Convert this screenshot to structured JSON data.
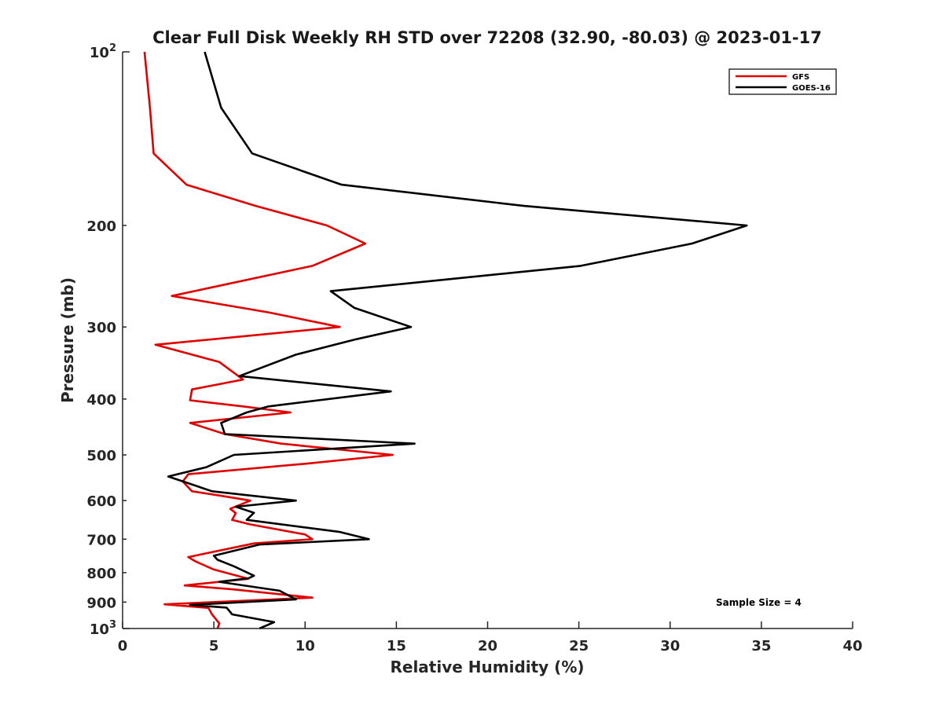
{
  "chart_data": {
    "type": "line",
    "title": "Clear Full Disk Weekly RH STD over 72208 (32.90, -80.03) @ 2023-01-17",
    "xlabel": "Relative Humidity (%)",
    "ylabel": "Pressure (mb)",
    "xlim": [
      0,
      40
    ],
    "ylim": [
      100,
      1000
    ],
    "y_scale": "log",
    "y_reversed": true,
    "x_ticks": [
      "0",
      "5",
      "10",
      "15",
      "20",
      "25",
      "30",
      "35",
      "40"
    ],
    "y_ticks": [
      {
        "value": 100,
        "base": "10",
        "exp": "2"
      },
      {
        "value": 200,
        "label": "200"
      },
      {
        "value": 300,
        "label": "300"
      },
      {
        "value": 400,
        "label": "400"
      },
      {
        "value": 500,
        "label": "500"
      },
      {
        "value": 600,
        "label": "600"
      },
      {
        "value": 700,
        "label": "700"
      },
      {
        "value": 800,
        "label": "800"
      },
      {
        "value": 900,
        "label": "900"
      },
      {
        "value": 1000,
        "base": "10",
        "exp": "3"
      }
    ],
    "legend_position": "top-right",
    "annotation": "Sample Size = 4",
    "series": [
      {
        "name": "GFS",
        "color": "#e00000",
        "points": [
          [
            1.2,
            100
          ],
          [
            1.5,
            125
          ],
          [
            1.7,
            150
          ],
          [
            3.5,
            170
          ],
          [
            7.3,
            185
          ],
          [
            11.2,
            200
          ],
          [
            13.3,
            215
          ],
          [
            10.4,
            235
          ],
          [
            2.7,
            265
          ],
          [
            8.0,
            283
          ],
          [
            11.9,
            300
          ],
          [
            1.8,
            322
          ],
          [
            5.3,
            345
          ],
          [
            6.6,
            370
          ],
          [
            3.8,
            385
          ],
          [
            3.7,
            402
          ],
          [
            6.6,
            412
          ],
          [
            9.2,
            422
          ],
          [
            3.7,
            440
          ],
          [
            5.6,
            460
          ],
          [
            8.7,
            478
          ],
          [
            14.8,
            500
          ],
          [
            10.0,
            518
          ],
          [
            3.6,
            540
          ],
          [
            3.3,
            556
          ],
          [
            3.8,
            578
          ],
          [
            5.3,
            588
          ],
          [
            7.0,
            600
          ],
          [
            5.9,
            620
          ],
          [
            6.2,
            631
          ],
          [
            6.0,
            648
          ],
          [
            7.0,
            660
          ],
          [
            10.0,
            687
          ],
          [
            10.4,
            700
          ],
          [
            7.2,
            712
          ],
          [
            3.6,
            752
          ],
          [
            4.0,
            765
          ],
          [
            5.0,
            790
          ],
          [
            6.9,
            820
          ],
          [
            3.4,
            842
          ],
          [
            6.0,
            855
          ],
          [
            10.4,
            884
          ],
          [
            2.3,
            908
          ],
          [
            4.7,
            921
          ],
          [
            4.9,
            945
          ],
          [
            5.3,
            980
          ],
          [
            5.2,
            1000
          ]
        ]
      },
      {
        "name": "GOES-16",
        "color": "#000000",
        "points": [
          [
            4.5,
            100
          ],
          [
            5.4,
            125
          ],
          [
            7.1,
            150
          ],
          [
            12.0,
            170
          ],
          [
            22.0,
            185
          ],
          [
            34.2,
            200
          ],
          [
            31.2,
            215
          ],
          [
            25.1,
            235
          ],
          [
            11.4,
            260
          ],
          [
            12.7,
            278
          ],
          [
            15.8,
            300
          ],
          [
            12.8,
            315
          ],
          [
            9.5,
            335
          ],
          [
            6.4,
            365
          ],
          [
            14.7,
            388
          ],
          [
            8.0,
            412
          ],
          [
            6.8,
            422
          ],
          [
            5.4,
            440
          ],
          [
            5.6,
            460
          ],
          [
            16.0,
            478
          ],
          [
            6.1,
            500
          ],
          [
            4.6,
            525
          ],
          [
            2.5,
            545
          ],
          [
            4.9,
            578
          ],
          [
            9.5,
            600
          ],
          [
            6.2,
            615
          ],
          [
            7.2,
            630
          ],
          [
            6.8,
            648
          ],
          [
            11.9,
            680
          ],
          [
            13.5,
            700
          ],
          [
            7.5,
            715
          ],
          [
            5.0,
            748
          ],
          [
            5.2,
            760
          ],
          [
            6.1,
            780
          ],
          [
            7.2,
            810
          ],
          [
            6.9,
            818
          ],
          [
            5.3,
            830
          ],
          [
            8.6,
            860
          ],
          [
            9.5,
            890
          ],
          [
            3.7,
            910
          ],
          [
            5.7,
            920
          ],
          [
            6.0,
            945
          ],
          [
            8.3,
            975
          ],
          [
            7.5,
            1000
          ]
        ]
      }
    ]
  }
}
